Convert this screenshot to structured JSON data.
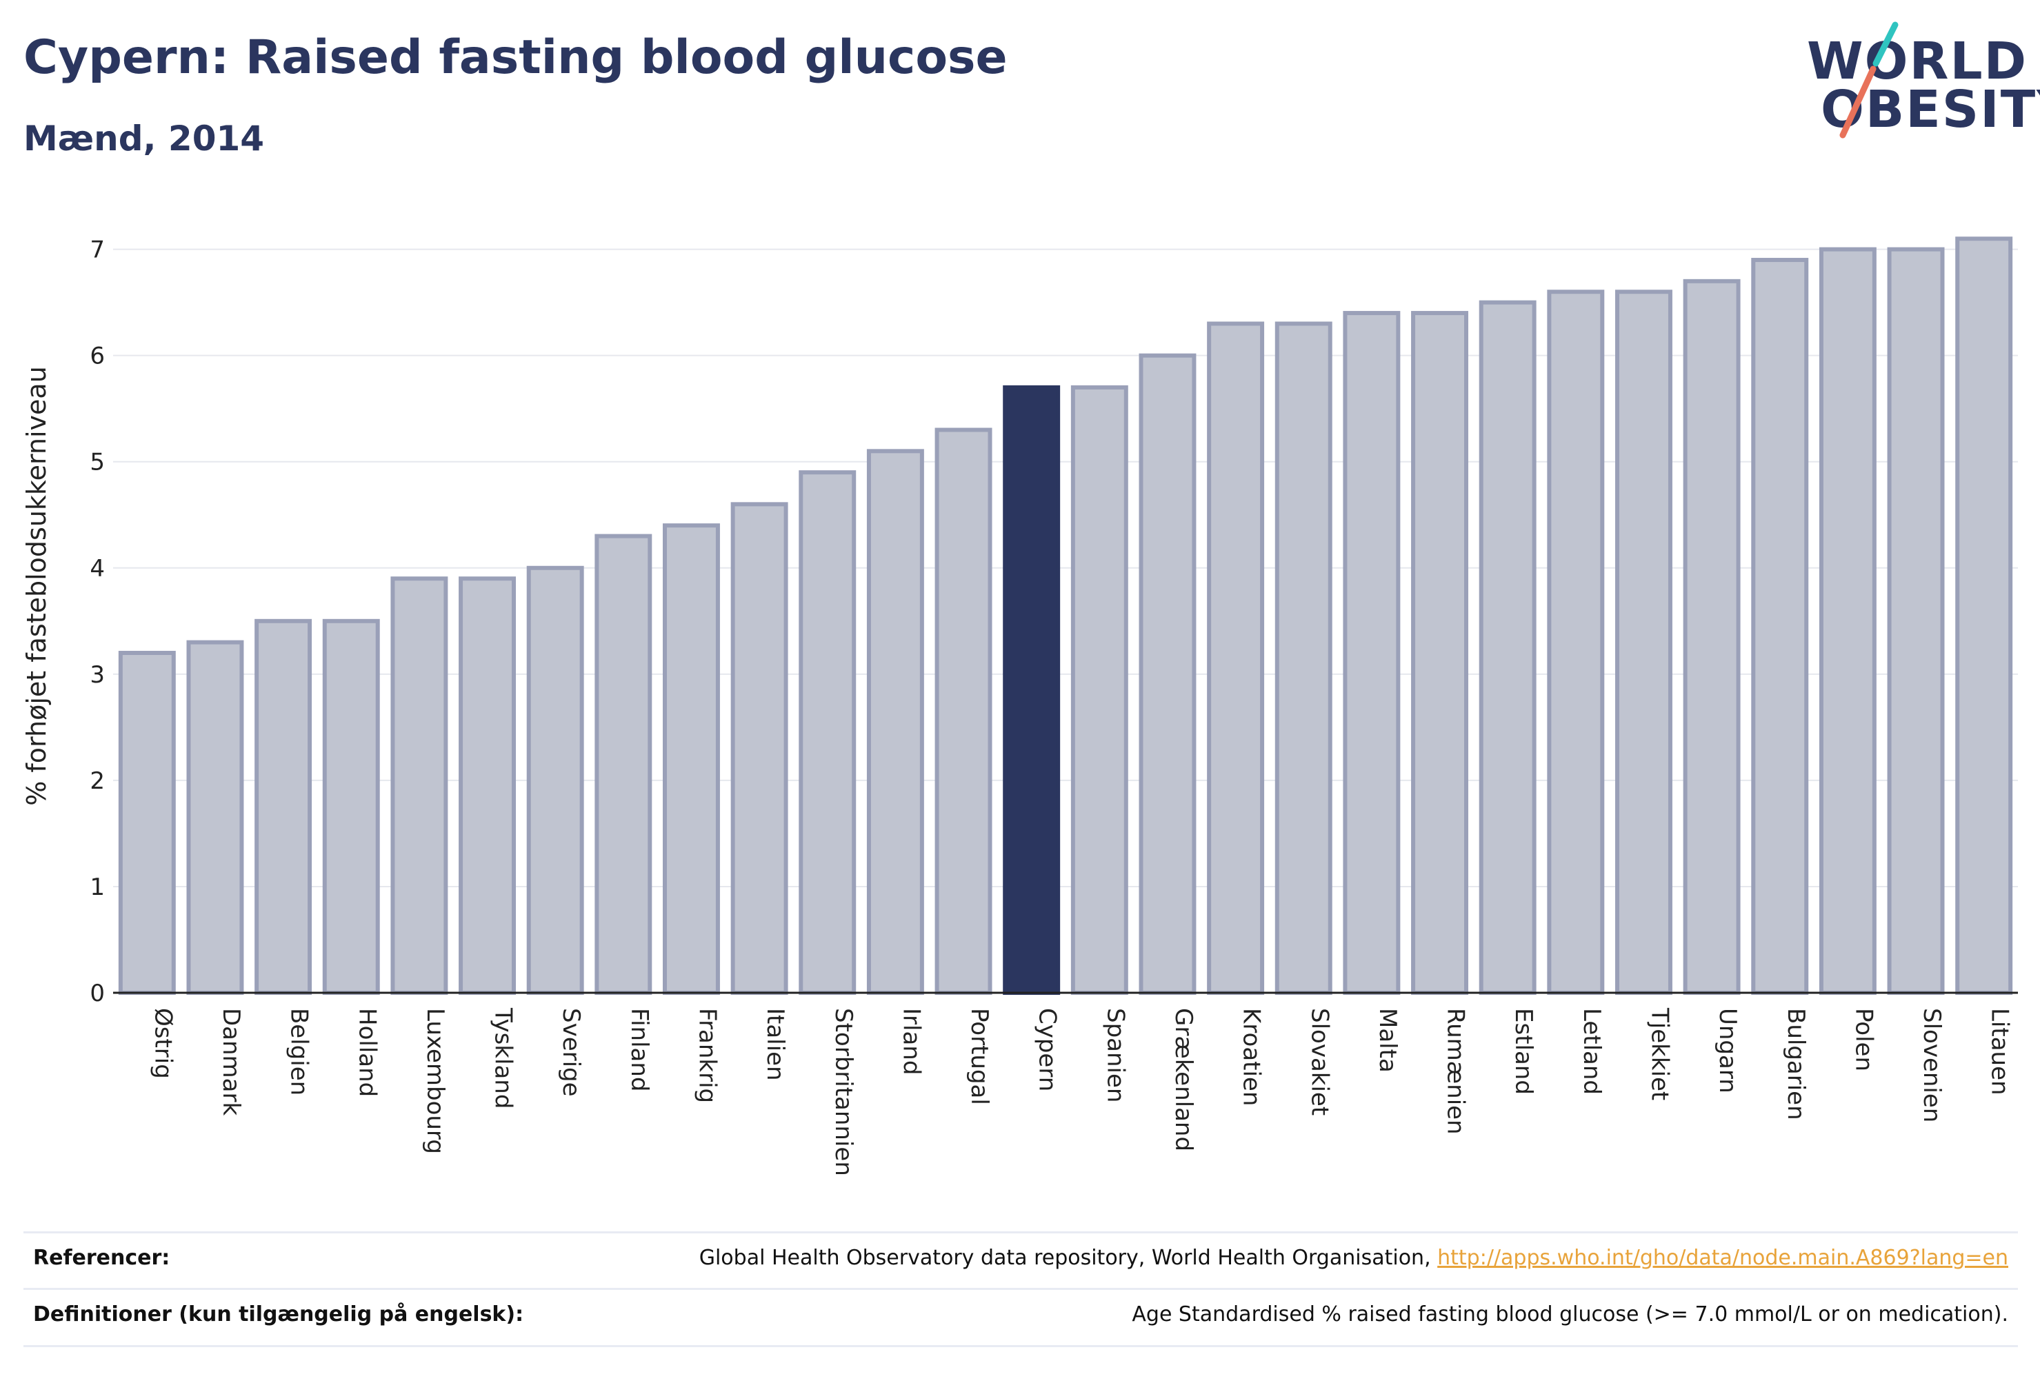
{
  "title": "Cypern: Raised fasting blood glucose",
  "subtitle": "Mænd, 2014",
  "logo": {
    "line1": "WORLD",
    "line2": "OBESITY",
    "color": "#2b365f",
    "slash_colors": [
      "#2fc4c0",
      "#e8725a"
    ]
  },
  "colors": {
    "bar_default": "#c0c4d0",
    "bar_border": "#9aa0b8",
    "bar_highlight": "#2b365f",
    "gridline": "#e6e8ee",
    "axis": "#222222"
  },
  "chart_data": {
    "type": "bar",
    "ylabel": "% forhøjet fasteblodsukkerniveau",
    "ylim": [
      0,
      7.4
    ],
    "yticks": [
      0,
      1,
      2,
      3,
      4,
      5,
      6,
      7
    ],
    "grid": true,
    "highlight": "Cypern",
    "categories": [
      "Østrig",
      "Danmark",
      "Belgien",
      "Holland",
      "Luxembourg",
      "Tyskland",
      "Sverige",
      "Finland",
      "Frankrig",
      "Italien",
      "Storbritannien",
      "Irland",
      "Portugal",
      "Cypern",
      "Spanien",
      "Grækenland",
      "Kroatien",
      "Slovakiet",
      "Malta",
      "Rumænien",
      "Estland",
      "Letland",
      "Tjekkiet",
      "Ungarn",
      "Bulgarien",
      "Polen",
      "Slovenien",
      "Litauen"
    ],
    "values": [
      3.2,
      3.3,
      3.5,
      3.5,
      3.9,
      3.9,
      4.0,
      4.3,
      4.4,
      4.6,
      4.9,
      5.1,
      5.3,
      5.7,
      5.7,
      6.0,
      6.3,
      6.3,
      6.4,
      6.4,
      6.5,
      6.6,
      6.6,
      6.7,
      6.9,
      7.0,
      7.0,
      7.1
    ]
  },
  "footer": {
    "ref_label": "Referencer:",
    "ref_text": "Global Health Observatory data repository, World Health Organisation, ",
    "ref_link": "http://apps.who.int/gho/data/node.main.A869?lang=en",
    "def_label": "Definitioner (kun tilgængelig på engelsk):",
    "def_text": "Age Standardised % raised fasting blood glucose (>= 7.0 mmol/L or on medication)."
  }
}
